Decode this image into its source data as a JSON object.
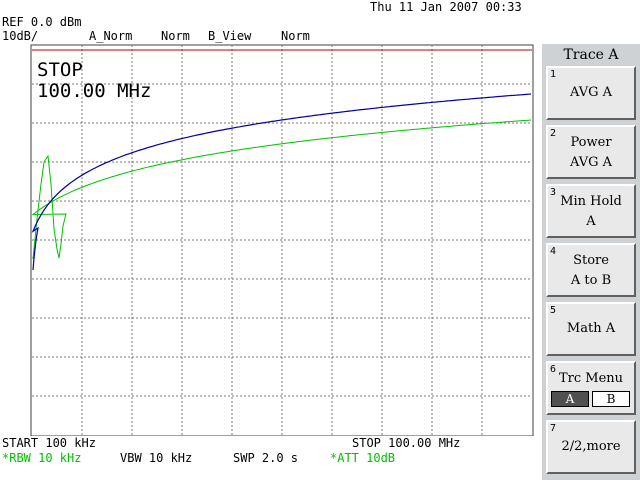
{
  "header": {
    "datetime": "Thu 11 Jan 2007 00:33",
    "ref": "REF 0.0 dBm",
    "scale": "10dB/",
    "trace_a_mode": "A_Norm",
    "norm1": "Norm",
    "trace_b_mode": "B_View",
    "norm2": "Norm"
  },
  "screen": {
    "status": "STOP",
    "freq": "100.00 MHz"
  },
  "footer": {
    "start": "START 100 kHz",
    "stop": "STOP 100.00 MHz",
    "rbw": "*RBW 10 kHz",
    "vbw": "VBW 10 kHz",
    "swp": "SWP 2.0 s",
    "att": "*ATT 10dB"
  },
  "menu": {
    "title": "Trace A",
    "keys": [
      {
        "num": "1",
        "line1": "AVG A",
        "line2": ""
      },
      {
        "num": "2",
        "line1": "Power",
        "line2": "AVG A"
      },
      {
        "num": "3",
        "line1": "Min Hold",
        "line2": "A"
      },
      {
        "num": "4",
        "line1": "Store",
        "line2": "A to B"
      },
      {
        "num": "5",
        "line1": "Math A",
        "line2": ""
      },
      {
        "num": "6",
        "line1": "Trc Menu",
        "line2": ""
      },
      {
        "num": "7",
        "line1": "2/2,more",
        "line2": ""
      }
    ],
    "trc_a": "A",
    "trc_b": "B"
  },
  "colors": {
    "trace_a": "#0000a0",
    "trace_b": "#00c000",
    "ref_line": "#c00000",
    "green_text": "#00c000"
  }
}
